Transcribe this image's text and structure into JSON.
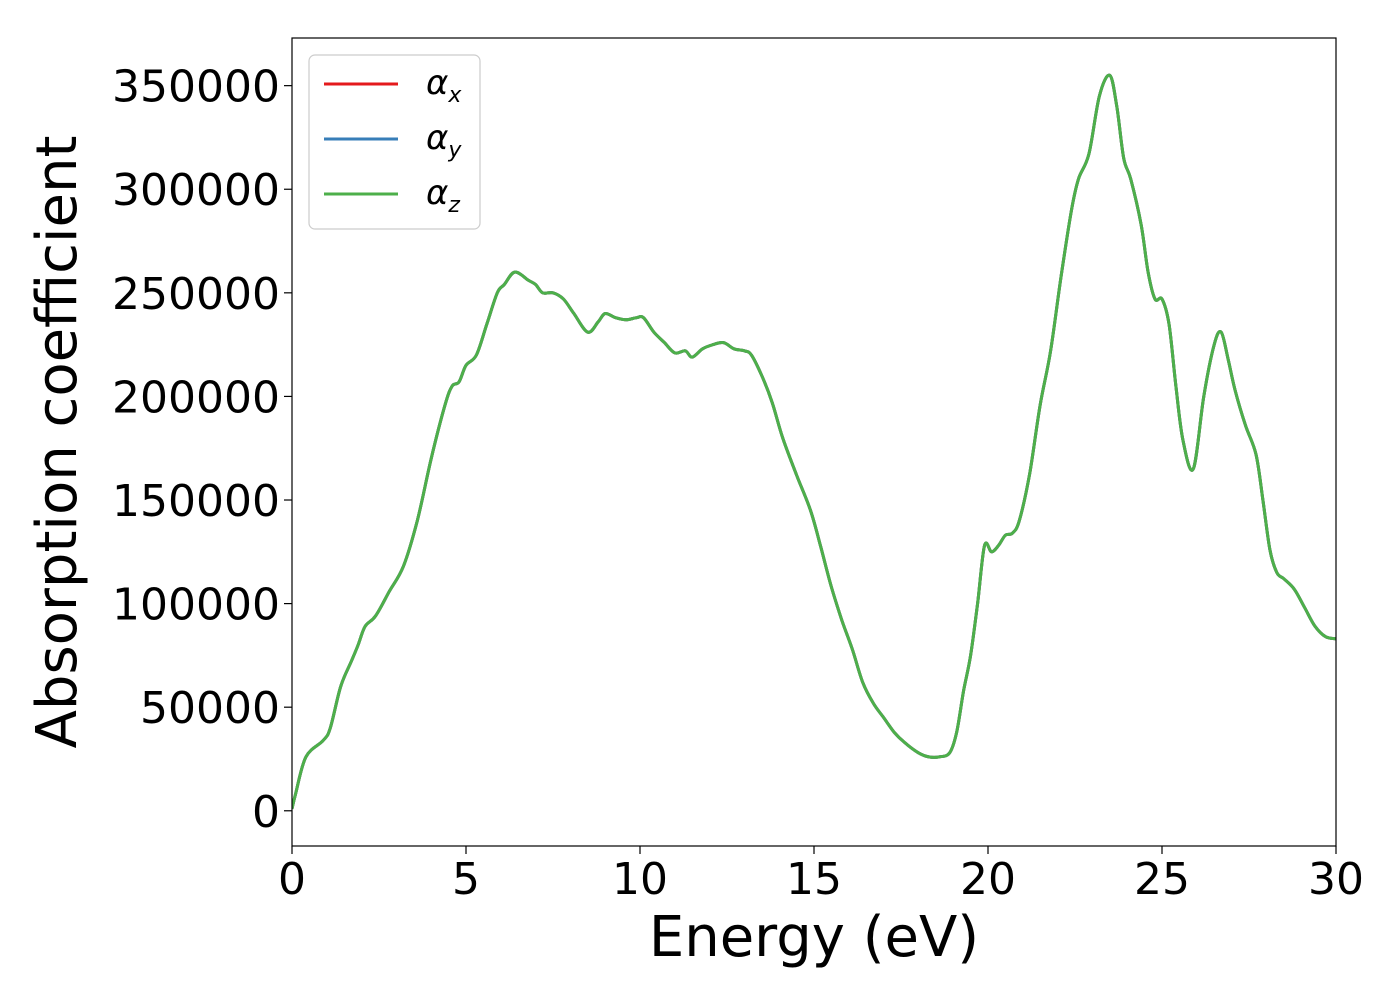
{
  "chart_data": {
    "type": "line",
    "title": "",
    "xlabel": "Energy (eV)",
    "ylabel": "Absorption coefficient",
    "xlim": [
      0,
      30
    ],
    "ylim": [
      -17000,
      373000
    ],
    "xticks": [
      0,
      5,
      10,
      15,
      20,
      25,
      30
    ],
    "yticks": [
      0,
      50000,
      100000,
      150000,
      200000,
      250000,
      300000,
      350000
    ],
    "grid": false,
    "legend_position": "top-left",
    "series": [
      {
        "name": "α_x",
        "legend_base": "α",
        "legend_sub": "x",
        "color": "#e41a1c",
        "x": [
          0,
          0.1,
          0.4,
          0.9,
          1.1,
          1.4,
          1.7,
          1.9,
          2.1,
          2.4,
          2.8,
          3.2,
          3.6,
          4.0,
          4.4,
          4.6,
          4.8,
          5.0,
          5.3,
          5.6,
          5.9,
          6.1,
          6.4,
          6.8,
          7.0,
          7.2,
          7.5,
          7.8,
          8.1,
          8.5,
          8.8,
          9.0,
          9.3,
          9.6,
          9.9,
          10.1,
          10.4,
          10.7,
          11.0,
          11.3,
          11.5,
          11.8,
          12.1,
          12.4,
          12.7,
          13.0,
          13.2,
          13.5,
          13.8,
          14.1,
          14.5,
          14.9,
          15.2,
          15.5,
          15.8,
          16.1,
          16.4,
          16.7,
          17.0,
          17.3,
          17.6,
          18.0,
          18.3,
          18.6,
          18.9,
          19.1,
          19.3,
          19.5,
          19.7,
          19.9,
          20.1,
          20.3,
          20.5,
          20.7,
          20.9,
          21.2,
          21.5,
          21.8,
          22.1,
          22.4,
          22.6,
          22.9,
          23.2,
          23.5,
          23.7,
          23.9,
          24.1,
          24.4,
          24.6,
          24.8,
          25.0,
          25.2,
          25.4,
          25.6,
          25.9,
          26.2,
          26.5,
          26.7,
          26.9,
          27.1,
          27.4,
          27.7,
          27.9,
          28.1,
          28.3,
          28.5,
          28.8,
          29.1,
          29.4,
          29.7,
          30.0
        ],
        "y": [
          1000,
          8000,
          26000,
          34000,
          40000,
          60000,
          72000,
          80000,
          89000,
          94000,
          106000,
          118000,
          140000,
          170000,
          196000,
          205000,
          207000,
          215000,
          220000,
          235000,
          250000,
          254000,
          260000,
          256000,
          254000,
          250000,
          250000,
          247000,
          240000,
          231000,
          236000,
          240000,
          238000,
          237000,
          238000,
          238000,
          231000,
          226000,
          221000,
          222000,
          219000,
          223000,
          225000,
          226000,
          223000,
          222000,
          220000,
          210000,
          197000,
          180000,
          162000,
          145000,
          127000,
          108000,
          92000,
          78000,
          62000,
          52000,
          45000,
          38000,
          33000,
          28000,
          26000,
          26000,
          28000,
          38000,
          58000,
          75000,
          100000,
          128000,
          125000,
          128000,
          133000,
          134000,
          140000,
          163000,
          196000,
          222000,
          258000,
          290000,
          305000,
          317000,
          345000,
          355000,
          340000,
          315000,
          305000,
          283000,
          260000,
          247000,
          247000,
          235000,
          205000,
          179000,
          165000,
          200000,
          225000,
          231000,
          218000,
          203000,
          186000,
          172000,
          150000,
          126000,
          115000,
          112000,
          107000,
          98000,
          89000,
          84000,
          83000
        ]
      },
      {
        "name": "α_y",
        "legend_base": "α",
        "legend_sub": "y",
        "color": "#377eb8",
        "x": [
          0,
          0.1,
          0.4,
          0.9,
          1.1,
          1.4,
          1.7,
          1.9,
          2.1,
          2.4,
          2.8,
          3.2,
          3.6,
          4.0,
          4.4,
          4.6,
          4.8,
          5.0,
          5.3,
          5.6,
          5.9,
          6.1,
          6.4,
          6.8,
          7.0,
          7.2,
          7.5,
          7.8,
          8.1,
          8.5,
          8.8,
          9.0,
          9.3,
          9.6,
          9.9,
          10.1,
          10.4,
          10.7,
          11.0,
          11.3,
          11.5,
          11.8,
          12.1,
          12.4,
          12.7,
          13.0,
          13.2,
          13.5,
          13.8,
          14.1,
          14.5,
          14.9,
          15.2,
          15.5,
          15.8,
          16.1,
          16.4,
          16.7,
          17.0,
          17.3,
          17.6,
          18.0,
          18.3,
          18.6,
          18.9,
          19.1,
          19.3,
          19.5,
          19.7,
          19.9,
          20.1,
          20.3,
          20.5,
          20.7,
          20.9,
          21.2,
          21.5,
          21.8,
          22.1,
          22.4,
          22.6,
          22.9,
          23.2,
          23.5,
          23.7,
          23.9,
          24.1,
          24.4,
          24.6,
          24.8,
          25.0,
          25.2,
          25.4,
          25.6,
          25.9,
          26.2,
          26.5,
          26.7,
          26.9,
          27.1,
          27.4,
          27.7,
          27.9,
          28.1,
          28.3,
          28.5,
          28.8,
          29.1,
          29.4,
          29.7,
          30.0
        ],
        "y": [
          1000,
          8000,
          26000,
          34000,
          40000,
          60000,
          72000,
          80000,
          89000,
          94000,
          106000,
          118000,
          140000,
          170000,
          196000,
          205000,
          207000,
          215000,
          220000,
          235000,
          250000,
          254000,
          260000,
          256000,
          254000,
          250000,
          250000,
          247000,
          240000,
          231000,
          236000,
          240000,
          238000,
          237000,
          238000,
          238000,
          231000,
          226000,
          221000,
          222000,
          219000,
          223000,
          225000,
          226000,
          223000,
          222000,
          220000,
          210000,
          197000,
          180000,
          162000,
          145000,
          127000,
          108000,
          92000,
          78000,
          62000,
          52000,
          45000,
          38000,
          33000,
          28000,
          26000,
          26000,
          28000,
          38000,
          58000,
          75000,
          100000,
          128000,
          125000,
          128000,
          133000,
          134000,
          140000,
          163000,
          196000,
          222000,
          258000,
          290000,
          305000,
          317000,
          345000,
          355000,
          340000,
          315000,
          305000,
          283000,
          260000,
          247000,
          247000,
          235000,
          205000,
          179000,
          165000,
          200000,
          225000,
          231000,
          218000,
          203000,
          186000,
          172000,
          150000,
          126000,
          115000,
          112000,
          107000,
          98000,
          89000,
          84000,
          83000
        ]
      },
      {
        "name": "α_z",
        "legend_base": "α",
        "legend_sub": "z",
        "color": "#4daf4a",
        "x": [
          0,
          0.1,
          0.4,
          0.9,
          1.1,
          1.4,
          1.7,
          1.9,
          2.1,
          2.4,
          2.8,
          3.2,
          3.6,
          4.0,
          4.4,
          4.6,
          4.8,
          5.0,
          5.3,
          5.6,
          5.9,
          6.1,
          6.4,
          6.8,
          7.0,
          7.2,
          7.5,
          7.8,
          8.1,
          8.5,
          8.8,
          9.0,
          9.3,
          9.6,
          9.9,
          10.1,
          10.4,
          10.7,
          11.0,
          11.3,
          11.5,
          11.8,
          12.1,
          12.4,
          12.7,
          13.0,
          13.2,
          13.5,
          13.8,
          14.1,
          14.5,
          14.9,
          15.2,
          15.5,
          15.8,
          16.1,
          16.4,
          16.7,
          17.0,
          17.3,
          17.6,
          18.0,
          18.3,
          18.6,
          18.9,
          19.1,
          19.3,
          19.5,
          19.7,
          19.9,
          20.1,
          20.3,
          20.5,
          20.7,
          20.9,
          21.2,
          21.5,
          21.8,
          22.1,
          22.4,
          22.6,
          22.9,
          23.2,
          23.5,
          23.7,
          23.9,
          24.1,
          24.4,
          24.6,
          24.8,
          25.0,
          25.2,
          25.4,
          25.6,
          25.9,
          26.2,
          26.5,
          26.7,
          26.9,
          27.1,
          27.4,
          27.7,
          27.9,
          28.1,
          28.3,
          28.5,
          28.8,
          29.1,
          29.4,
          29.7,
          30.0
        ],
        "y": [
          1000,
          8000,
          26000,
          34000,
          40000,
          60000,
          72000,
          80000,
          89000,
          94000,
          106000,
          118000,
          140000,
          170000,
          196000,
          205000,
          207000,
          215000,
          220000,
          235000,
          250000,
          254000,
          260000,
          256000,
          254000,
          250000,
          250000,
          247000,
          240000,
          231000,
          236000,
          240000,
          238000,
          237000,
          238000,
          238000,
          231000,
          226000,
          221000,
          222000,
          219000,
          223000,
          225000,
          226000,
          223000,
          222000,
          220000,
          210000,
          197000,
          180000,
          162000,
          145000,
          127000,
          108000,
          92000,
          78000,
          62000,
          52000,
          45000,
          38000,
          33000,
          28000,
          26000,
          26000,
          28000,
          38000,
          58000,
          75000,
          100000,
          128000,
          125000,
          128000,
          133000,
          134000,
          140000,
          163000,
          196000,
          222000,
          258000,
          290000,
          305000,
          317000,
          345000,
          355000,
          340000,
          315000,
          305000,
          283000,
          260000,
          247000,
          247000,
          235000,
          205000,
          179000,
          165000,
          200000,
          225000,
          231000,
          218000,
          203000,
          186000,
          172000,
          150000,
          126000,
          115000,
          112000,
          107000,
          98000,
          89000,
          84000,
          83000
        ]
      }
    ]
  }
}
